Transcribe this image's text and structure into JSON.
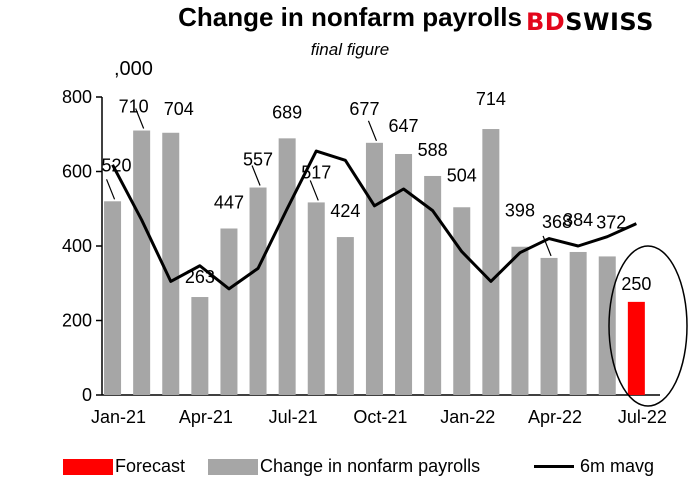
{
  "header": {
    "title": "Change in nonfarm payrolls",
    "subtitle": "final figure",
    "logo_text": "BDSWISS",
    "unit": ",000"
  },
  "colors": {
    "bar": "#a6a6a6",
    "forecast": "#ff0000",
    "line": "#000000",
    "logo_red": "#e3061b"
  },
  "legend": {
    "forecast": "Forecast",
    "bars": "Change in nonfarm payrolls",
    "line": "6m mavg"
  },
  "chart_data": {
    "type": "bar",
    "title": "Change in nonfarm payrolls",
    "subtitle": "final figure",
    "ylim": [
      0,
      800
    ],
    "yticks": [
      0,
      200,
      400,
      600,
      800
    ],
    "x_tick_labels": [
      "Jan-21",
      "Apr-21",
      "Jul-21",
      "Oct-21",
      "Jan-22",
      "Apr-22",
      "Jul-22"
    ],
    "categories": [
      "Jan-21",
      "Feb-21",
      "Mar-21",
      "Apr-21",
      "May-21",
      "Jun-21",
      "Jul-21",
      "Aug-21",
      "Sep-21",
      "Oct-21",
      "Nov-21",
      "Dec-21",
      "Jan-22",
      "Feb-22",
      "Mar-22",
      "Apr-22",
      "May-22",
      "Jun-22",
      "Jul-22"
    ],
    "series": [
      {
        "name": "Change in nonfarm payrolls",
        "type": "bar",
        "values": [
          520,
          710,
          704,
          263,
          447,
          557,
          689,
          517,
          424,
          677,
          647,
          588,
          504,
          714,
          398,
          368,
          384,
          372,
          null
        ],
        "labels": [
          "520",
          "710",
          "704",
          "263",
          "447",
          "557",
          "689",
          "517",
          "424",
          "677",
          "647",
          "588",
          "504",
          "714",
          "398",
          "368",
          "384",
          "372",
          ""
        ]
      },
      {
        "name": "Forecast",
        "type": "bar",
        "values": [
          null,
          null,
          null,
          null,
          null,
          null,
          null,
          null,
          null,
          null,
          null,
          null,
          null,
          null,
          null,
          null,
          null,
          null,
          250
        ],
        "labels": [
          "",
          "",
          "",
          "",
          "",
          "",
          "",
          "",
          "",
          "",
          "",
          "",
          "",
          "",
          "",
          "",
          "",
          "",
          "250"
        ]
      },
      {
        "name": "6m mavg",
        "type": "line",
        "values": [
          618,
          470,
          305,
          347,
          285,
          340,
          500,
          655,
          630,
          508,
          553,
          495,
          385,
          305,
          382,
          420,
          400,
          425,
          460
        ]
      }
    ]
  }
}
